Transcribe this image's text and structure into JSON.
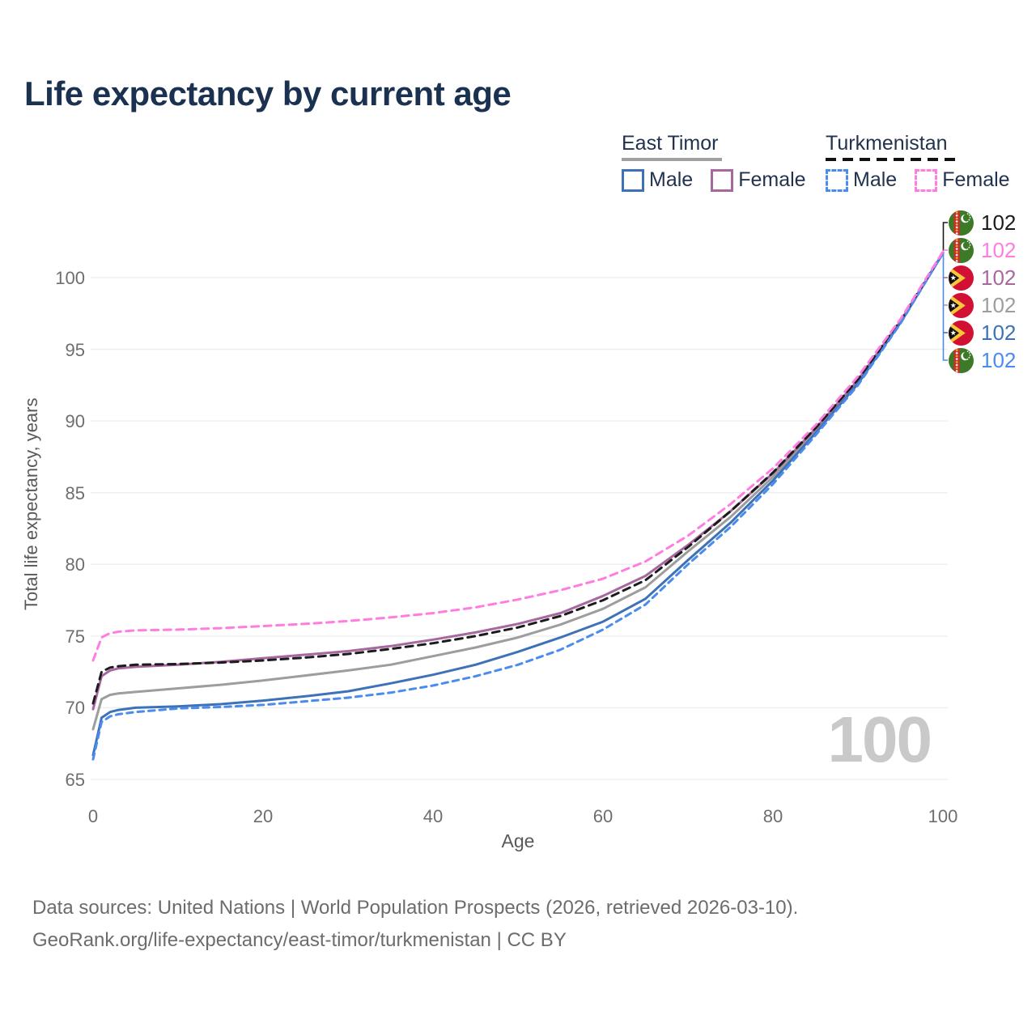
{
  "title": "Life expectancy by current age",
  "legend": {
    "east_timor": {
      "title": "East Timor",
      "male_label": "Male",
      "female_label": "Female"
    },
    "turkmenistan": {
      "title": "Turkmenistan",
      "male_label": "Male",
      "female_label": "Female"
    }
  },
  "watermark": "100",
  "footer": {
    "line1": "Data sources: United Nations | World Population Prospects (2026, retrieved 2026-03-10).",
    "line2": "GeoRank.org/life-expectancy/east-timor/turkmenistan | CC BY"
  },
  "colors": {
    "title_text": "#1a3150",
    "legend_text": "#22334e",
    "axis_text": "#6e6e6e",
    "grid": "#ededed",
    "watermark": "#c9c9c9",
    "et_male": "#3e72b8",
    "et_female": "#a7679f",
    "et_both": "#9d9d9d",
    "tk_male": "#4a8cee",
    "tk_female": "#ff7de1",
    "tk_both": "#1c1c1c"
  },
  "chart_data": {
    "type": "line",
    "title": "Life expectancy by current age",
    "xlabel": "Age",
    "ylabel": "Total life expectancy, years",
    "xlim": [
      0,
      100
    ],
    "ylim": [
      65,
      103
    ],
    "x_ticks": [
      0,
      20,
      40,
      60,
      80,
      100
    ],
    "y_ticks": [
      65,
      70,
      75,
      80,
      85,
      90,
      95,
      100
    ],
    "grid": true,
    "legend_position": "top-right",
    "ages": [
      0,
      1,
      2,
      3,
      5,
      10,
      15,
      20,
      25,
      30,
      35,
      40,
      45,
      50,
      55,
      60,
      65,
      70,
      75,
      80,
      85,
      90,
      95,
      100
    ],
    "series": [
      {
        "name": "East Timor Both sexes",
        "country": "east_timor",
        "sex": "both",
        "color_key": "et_both",
        "color": "#9d9d9d",
        "dash": null,
        "values": [
          68.5,
          70.6,
          70.9,
          71.0,
          71.1,
          71.35,
          71.6,
          71.9,
          72.25,
          72.6,
          73.0,
          73.6,
          74.2,
          74.9,
          75.8,
          76.9,
          78.4,
          80.9,
          83.3,
          86.1,
          89.3,
          92.75,
          96.9,
          101.7
        ]
      },
      {
        "name": "East Timor Female",
        "country": "east_timor",
        "sex": "female",
        "color_key": "et_female",
        "color": "#a7679f",
        "dash": null,
        "values": [
          69.9,
          72.2,
          72.6,
          72.75,
          72.85,
          73.0,
          73.2,
          73.45,
          73.7,
          73.95,
          74.3,
          74.75,
          75.25,
          75.85,
          76.6,
          77.8,
          79.2,
          81.35,
          83.7,
          86.35,
          89.45,
          92.85,
          96.95,
          101.7
        ]
      },
      {
        "name": "East Timor Male",
        "country": "east_timor",
        "sex": "male",
        "color_key": "et_male",
        "color": "#3e72b8",
        "dash": null,
        "values": [
          66.7,
          69.3,
          69.7,
          69.85,
          70.0,
          70.1,
          70.25,
          70.5,
          70.8,
          71.15,
          71.7,
          72.3,
          73.0,
          73.9,
          74.9,
          76.0,
          77.6,
          80.3,
          82.9,
          85.85,
          89.15,
          92.6,
          96.85,
          101.7
        ]
      },
      {
        "name": "Turkmenistan Both sexes",
        "country": "turkmenistan",
        "sex": "both",
        "color_key": "tk_both",
        "color": "#1c1c1c",
        "dash": [
          9,
          6.5
        ],
        "values": [
          70.3,
          72.5,
          72.8,
          72.9,
          73.0,
          73.05,
          73.15,
          73.3,
          73.5,
          73.75,
          74.1,
          74.5,
          75.0,
          75.6,
          76.4,
          77.5,
          78.9,
          81.2,
          83.7,
          86.4,
          89.5,
          92.9,
          97.0,
          101.75
        ]
      },
      {
        "name": "Turkmenistan Male",
        "country": "turkmenistan",
        "sex": "male",
        "color_key": "tk_male",
        "color": "#4a8cee",
        "dash": [
          7.5,
          6
        ],
        "values": [
          66.4,
          69.0,
          69.4,
          69.55,
          69.7,
          69.95,
          70.05,
          70.2,
          70.45,
          70.7,
          71.05,
          71.55,
          72.2,
          73.0,
          74.05,
          75.45,
          77.2,
          80.0,
          82.6,
          85.6,
          89.0,
          92.5,
          96.8,
          101.7
        ]
      },
      {
        "name": "Turkmenistan Female",
        "country": "turkmenistan",
        "sex": "female",
        "color_key": "tk_female",
        "color": "#ff7de1",
        "dash": [
          9,
          6.5
        ],
        "values": [
          73.3,
          74.9,
          75.2,
          75.3,
          75.4,
          75.45,
          75.55,
          75.7,
          75.85,
          76.05,
          76.3,
          76.6,
          77.0,
          77.55,
          78.2,
          79.0,
          80.2,
          82.0,
          84.2,
          86.7,
          89.7,
          93.1,
          97.1,
          101.8
        ]
      }
    ],
    "end_labels": [
      {
        "flag": "turkmenistan",
        "text": "102",
        "color": "#1c1c1c",
        "series": "Turkmenistan Both sexes"
      },
      {
        "flag": "turkmenistan",
        "text": "102",
        "color": "#ff7de1",
        "series": "Turkmenistan Female"
      },
      {
        "flag": "east_timor",
        "text": "102",
        "color": "#a7679f",
        "series": "East Timor Female"
      },
      {
        "flag": "east_timor",
        "text": "102",
        "color": "#9d9d9d",
        "series": "East Timor Both sexes"
      },
      {
        "flag": "east_timor",
        "text": "102",
        "color": "#3e72b8",
        "series": "East Timor Male"
      },
      {
        "flag": "turkmenistan",
        "text": "102",
        "color": "#4a8cee",
        "series": "Turkmenistan Male"
      }
    ]
  }
}
